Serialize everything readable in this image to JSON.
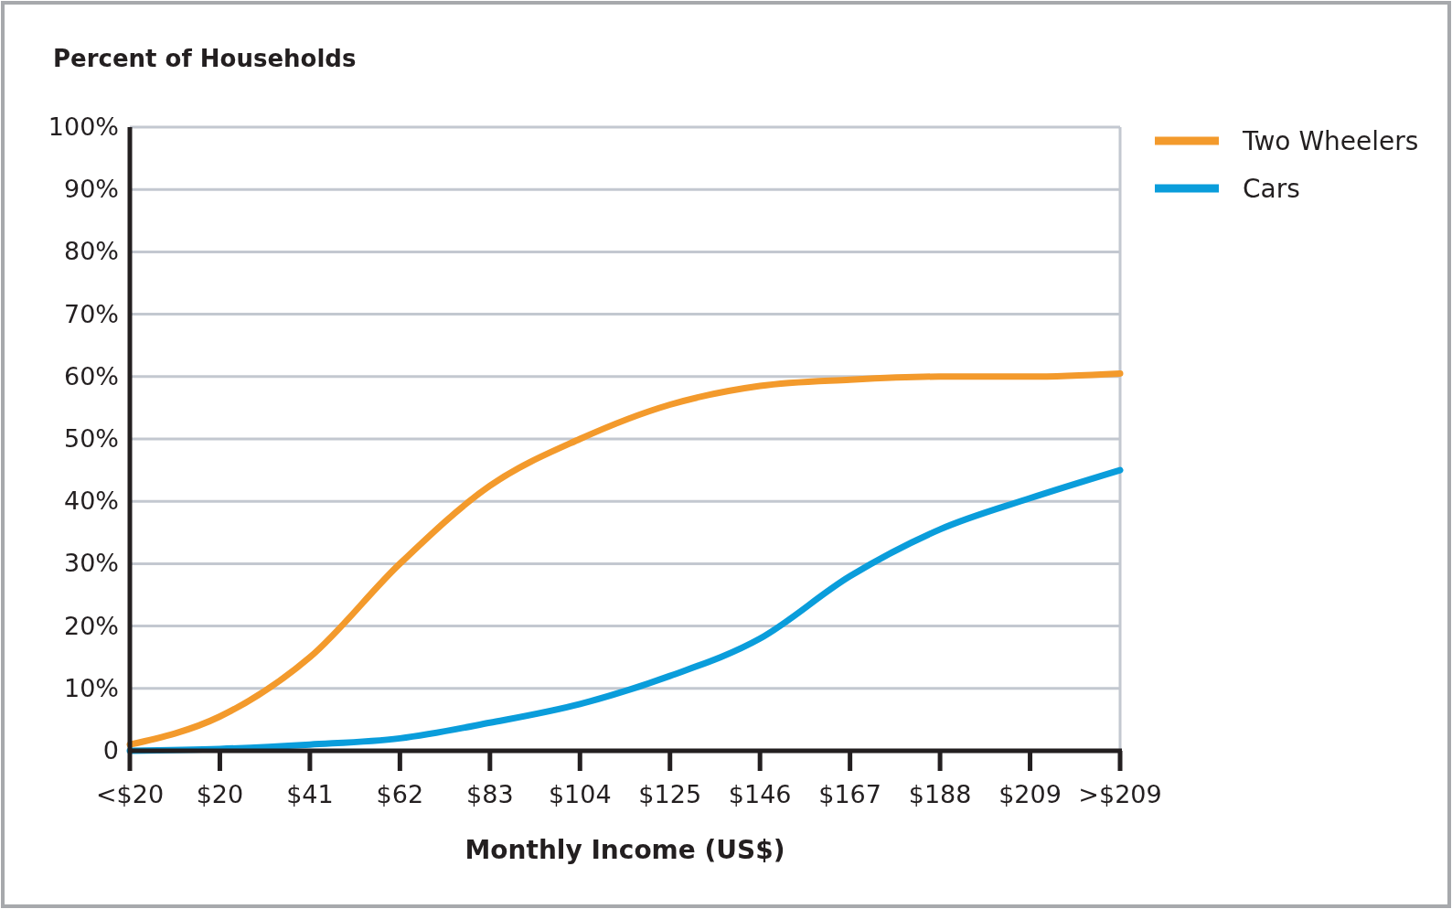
{
  "chart_data": {
    "type": "line",
    "title": "Percent of Households",
    "xlabel": "Monthly Income (US$)",
    "categories": [
      "<$20",
      "$20",
      "$41",
      "$62",
      "$83",
      "$104",
      "$125",
      "$146",
      "$167",
      "$188",
      "$209",
      ">$209"
    ],
    "series": [
      {
        "name": "Two Wheelers",
        "color": "#f39a2c",
        "values": [
          1,
          5.5,
          15,
          30,
          42.5,
          50,
          55.5,
          58.5,
          59.5,
          60,
          60,
          60.5
        ]
      },
      {
        "name": "Cars",
        "color": "#0a9ddb",
        "values": [
          0,
          0.3,
          1,
          2,
          4.5,
          7.5,
          12,
          18,
          28,
          35.5,
          40.5,
          45
        ]
      }
    ],
    "ylim": [
      0,
      100
    ],
    "yticks": [
      {
        "value": 0,
        "label": "0"
      },
      {
        "value": 10,
        "label": "10%"
      },
      {
        "value": 20,
        "label": "20%"
      },
      {
        "value": 30,
        "label": "30%"
      },
      {
        "value": 40,
        "label": "40%"
      },
      {
        "value": 50,
        "label": "50%"
      },
      {
        "value": 60,
        "label": "60%"
      },
      {
        "value": 70,
        "label": "70%"
      },
      {
        "value": 80,
        "label": "80%"
      },
      {
        "value": 90,
        "label": "90%"
      },
      {
        "value": 100,
        "label": "100%"
      }
    ],
    "grid": "y",
    "legend": "top right",
    "marker": "none",
    "line_style": "solid"
  }
}
